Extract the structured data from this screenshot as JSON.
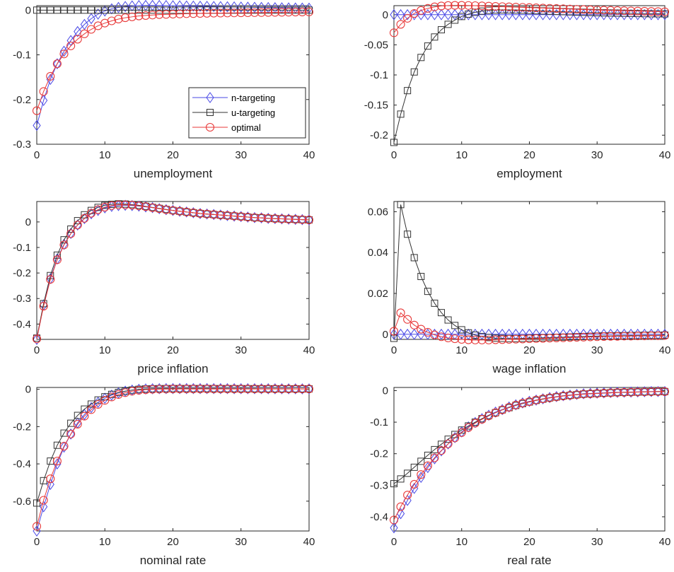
{
  "colors": {
    "n-targeting": "#4a4ae6",
    "u-targeting": "#333333",
    "optimal": "#e83a3a",
    "axes": "#262626"
  },
  "legend": [
    "n-targeting",
    "u-targeting",
    "optimal"
  ],
  "chart_data": [
    {
      "type": "line",
      "xlabel": "unemployment",
      "xlim": [
        0,
        40
      ],
      "ylim": [
        -0.3,
        0.01
      ],
      "xticks": [
        "0",
        "10",
        "20",
        "30",
        "40"
      ],
      "yticks": [
        "0",
        "-0.1",
        "-0.2",
        "-0.3"
      ],
      "legend_placement": "lower-right",
      "series": [
        {
          "name": "n-targeting",
          "marker": "diamond",
          "x0": 0,
          "values": [
            -0.258,
            -0.202,
            -0.155,
            -0.12,
            -0.092,
            -0.068,
            -0.048,
            -0.032,
            -0.019,
            -0.009,
            -0.002,
            0.003,
            0.006,
            0.008,
            0.0095,
            0.0102,
            0.0105,
            0.0105,
            0.0104,
            0.0102,
            0.0099,
            0.0096,
            0.0093,
            0.009,
            0.0087,
            0.0084,
            0.0081,
            0.0078,
            0.0075,
            0.0072,
            0.0069,
            0.0066,
            0.0063,
            0.006,
            0.0057,
            0.0054,
            0.0052,
            0.005,
            0.0048,
            0.0046,
            0.0044
          ]
        },
        {
          "name": "u-targeting",
          "marker": "square",
          "x0": 0,
          "values": [
            0.0,
            0.0,
            0.0,
            0.0,
            0.0,
            0.0,
            0.0,
            0.0,
            0.0,
            0.0,
            0.0,
            0.0,
            0.0,
            0.0,
            0.0,
            0.0,
            0.0,
            0.0,
            0.0,
            0.0,
            0.0,
            0.0,
            0.0,
            0.0,
            0.0,
            0.0,
            0.0,
            0.0,
            0.0,
            0.0,
            0.0,
            0.0,
            0.0,
            0.0,
            0.0,
            0.0,
            0.0,
            0.0,
            0.0,
            0.0,
            0.0
          ]
        },
        {
          "name": "optimal",
          "marker": "circle",
          "x0": 0,
          "values": [
            -0.225,
            -0.182,
            -0.148,
            -0.12,
            -0.098,
            -0.08,
            -0.065,
            -0.053,
            -0.043,
            -0.035,
            -0.029,
            -0.024,
            -0.02,
            -0.017,
            -0.015,
            -0.013,
            -0.012,
            -0.011,
            -0.01,
            -0.0095,
            -0.009,
            -0.0085,
            -0.008,
            -0.0077,
            -0.0074,
            -0.0071,
            -0.0068,
            -0.0066,
            -0.0064,
            -0.0062,
            -0.006,
            -0.0058,
            -0.0056,
            -0.0054,
            -0.0052,
            -0.005,
            -0.0048,
            -0.0046,
            -0.0044,
            -0.0042,
            -0.004
          ]
        }
      ]
    },
    {
      "type": "line",
      "xlabel": "employment",
      "xlim": [
        0,
        40
      ],
      "ylim": [
        -0.215,
        0.015
      ],
      "xticks": [
        "0",
        "10",
        "20",
        "30",
        "40"
      ],
      "yticks": [
        "0",
        "-0.05",
        "-0.1",
        "-0.15",
        "-0.2"
      ],
      "series": [
        {
          "name": "n-targeting",
          "marker": "diamond",
          "x0": 0,
          "values": [
            0.0,
            0.0,
            0.0,
            0.0,
            0.0,
            0.0,
            0.0,
            0.0,
            0.0,
            0.0,
            0.0,
            0.0,
            0.0,
            0.0,
            0.0,
            0.0,
            0.0,
            0.0,
            0.0,
            0.0,
            0.0,
            0.0,
            0.0,
            0.0,
            0.0,
            0.0,
            0.0,
            0.0,
            0.0,
            0.0,
            0.0,
            0.0,
            0.0,
            0.0,
            0.0,
            0.0,
            0.0,
            0.0,
            0.0,
            0.0,
            0.0
          ]
        },
        {
          "name": "u-targeting",
          "marker": "square",
          "x0": 0,
          "values": [
            -0.212,
            -0.165,
            -0.126,
            -0.095,
            -0.071,
            -0.052,
            -0.037,
            -0.025,
            -0.016,
            -0.009,
            -0.003,
            0.001,
            0.004,
            0.006,
            0.0072,
            0.0078,
            0.008,
            0.008,
            0.0078,
            0.0075,
            0.0071,
            0.0067,
            0.0063,
            0.0059,
            0.0055,
            0.0051,
            0.0047,
            0.0043,
            0.004,
            0.0037,
            0.0034,
            0.0031,
            0.0028,
            0.0026,
            0.0024,
            0.0022,
            0.002,
            0.0018,
            0.0016,
            0.0015,
            0.0014
          ]
        },
        {
          "name": "optimal",
          "marker": "circle",
          "x0": 0,
          "values": [
            -0.03,
            -0.016,
            -0.006,
            0.002,
            0.007,
            0.0105,
            0.013,
            0.0145,
            0.0152,
            0.0155,
            0.0155,
            0.0153,
            0.015,
            0.0146,
            0.0142,
            0.0138,
            0.0134,
            0.013,
            0.0126,
            0.0122,
            0.0118,
            0.0114,
            0.011,
            0.0106,
            0.0102,
            0.0098,
            0.0094,
            0.009,
            0.0086,
            0.0082,
            0.0078,
            0.0075,
            0.0072,
            0.0069,
            0.0066,
            0.0063,
            0.006,
            0.0057,
            0.0054,
            0.0051,
            0.0048
          ]
        }
      ]
    },
    {
      "type": "line",
      "xlabel": "price inflation",
      "xlim": [
        0,
        40
      ],
      "ylim": [
        -0.46,
        0.08
      ],
      "xticks": [
        "0",
        "10",
        "20",
        "30",
        "40"
      ],
      "yticks": [
        "0",
        "-0.1",
        "-0.2",
        "-0.3",
        "-0.4"
      ],
      "series": [
        {
          "name": "n-targeting",
          "marker": "diamond",
          "x0": 0,
          "values": [
            -0.46,
            -0.325,
            -0.222,
            -0.145,
            -0.088,
            -0.045,
            -0.012,
            0.013,
            0.032,
            0.045,
            0.055,
            0.061,
            0.064,
            0.065,
            0.064,
            0.062,
            0.059,
            0.056,
            0.052,
            0.048,
            0.045,
            0.042,
            0.039,
            0.036,
            0.033,
            0.031,
            0.029,
            0.027,
            0.025,
            0.023,
            0.021,
            0.019,
            0.017,
            0.016,
            0.014,
            0.013,
            0.012,
            0.011,
            0.01,
            0.009,
            0.008
          ]
        },
        {
          "name": "u-targeting",
          "marker": "square",
          "x0": 0,
          "values": [
            -0.455,
            -0.32,
            -0.21,
            -0.13,
            -0.07,
            -0.028,
            0.005,
            0.028,
            0.045,
            0.057,
            0.065,
            0.069,
            0.071,
            0.07,
            0.068,
            0.065,
            0.061,
            0.057,
            0.053,
            0.049,
            0.045,
            0.042,
            0.039,
            0.036,
            0.033,
            0.031,
            0.029,
            0.027,
            0.025,
            0.023,
            0.021,
            0.019,
            0.017,
            0.016,
            0.014,
            0.013,
            0.012,
            0.011,
            0.01,
            0.009,
            0.008
          ]
        },
        {
          "name": "optimal",
          "marker": "circle",
          "x0": 0,
          "values": [
            -0.458,
            -0.33,
            -0.225,
            -0.148,
            -0.09,
            -0.046,
            -0.012,
            0.014,
            0.034,
            0.048,
            0.058,
            0.064,
            0.067,
            0.067,
            0.066,
            0.063,
            0.06,
            0.056,
            0.052,
            0.048,
            0.045,
            0.042,
            0.039,
            0.036,
            0.033,
            0.031,
            0.029,
            0.027,
            0.025,
            0.023,
            0.021,
            0.019,
            0.017,
            0.016,
            0.014,
            0.013,
            0.012,
            0.011,
            0.01,
            0.009,
            0.008
          ]
        }
      ]
    },
    {
      "type": "line",
      "xlabel": "wage inflation",
      "xlim": [
        0,
        40
      ],
      "ylim": [
        -0.0025,
        0.065
      ],
      "xticks": [
        "0",
        "10",
        "20",
        "30",
        "40"
      ],
      "yticks": [
        "0",
        "0.02",
        "0.04",
        "0.06"
      ],
      "series": [
        {
          "name": "n-targeting",
          "marker": "diamond",
          "x0": 0,
          "values": [
            0.0,
            0.0,
            0.0,
            0.0,
            0.0,
            0.0,
            0.0,
            0.0,
            0.0,
            0.0,
            0.0,
            0.0,
            0.0,
            0.0,
            0.0,
            0.0,
            0.0,
            0.0,
            0.0,
            0.0,
            0.0,
            0.0,
            0.0,
            0.0,
            0.0,
            0.0,
            0.0,
            0.0,
            0.0,
            0.0,
            0.0,
            0.0,
            0.0,
            0.0,
            0.0,
            0.0,
            0.0,
            0.0,
            0.0,
            0.0,
            0.0
          ]
        },
        {
          "name": "u-targeting",
          "marker": "square",
          "x0": 0,
          "values": [
            -0.002,
            0.0635,
            0.049,
            0.0375,
            0.0283,
            0.021,
            0.0152,
            0.0106,
            0.007,
            0.0043,
            0.0022,
            0.0007,
            -0.0004,
            -0.0011,
            -0.0016,
            -0.0019,
            -0.002,
            -0.0021,
            -0.0021,
            -0.002,
            -0.0019,
            -0.0018,
            -0.0017,
            -0.0016,
            -0.0015,
            -0.0014,
            -0.0013,
            -0.0012,
            -0.0011,
            -0.001,
            -0.0009,
            -0.0008,
            -0.0008,
            -0.0007,
            -0.0007,
            -0.0006,
            -0.0006,
            -0.0005,
            -0.0005,
            -0.0005,
            -0.0004
          ]
        },
        {
          "name": "optimal",
          "marker": "circle",
          "x0": 0,
          "values": [
            0.0015,
            0.0105,
            0.0073,
            0.0045,
            0.0025,
            0.001,
            -0.0003,
            -0.0012,
            -0.0018,
            -0.0022,
            -0.0025,
            -0.0027,
            -0.0028,
            -0.0028,
            -0.0028,
            -0.0027,
            -0.0026,
            -0.0025,
            -0.0024,
            -0.0023,
            -0.0022,
            -0.0021,
            -0.002,
            -0.0019,
            -0.0018,
            -0.0017,
            -0.0016,
            -0.0015,
            -0.0014,
            -0.0013,
            -0.0012,
            -0.0011,
            -0.001,
            -0.001,
            -0.0009,
            -0.0009,
            -0.0008,
            -0.0008,
            -0.0007,
            -0.0007,
            -0.0006
          ]
        }
      ]
    },
    {
      "type": "line",
      "xlabel": "nominal rate",
      "xlim": [
        0,
        40
      ],
      "ylim": [
        -0.76,
        0.01
      ],
      "xticks": [
        "0",
        "10",
        "20",
        "30",
        "40"
      ],
      "yticks": [
        "0",
        "-0.2",
        "-0.4",
        "-0.6"
      ],
      "series": [
        {
          "name": "n-targeting",
          "marker": "diamond",
          "x0": 0,
          "values": [
            -0.76,
            -0.63,
            -0.51,
            -0.4,
            -0.31,
            -0.24,
            -0.18,
            -0.135,
            -0.098,
            -0.07,
            -0.048,
            -0.031,
            -0.019,
            -0.01,
            -0.004,
            0.0,
            0.002,
            0.003,
            0.0035,
            0.0038,
            0.004,
            0.004,
            0.004,
            0.004,
            0.004,
            0.004,
            0.0038,
            0.0037,
            0.0036,
            0.0035,
            0.0034,
            0.0033,
            0.0032,
            0.0031,
            0.003,
            0.0029,
            0.0028,
            0.0027,
            0.0026,
            0.0025,
            0.0024
          ]
        },
        {
          "name": "u-targeting",
          "marker": "square",
          "x0": 0,
          "values": [
            -0.61,
            -0.49,
            -0.385,
            -0.3,
            -0.235,
            -0.182,
            -0.14,
            -0.106,
            -0.079,
            -0.057,
            -0.04,
            -0.027,
            -0.017,
            -0.01,
            -0.004,
            0.0,
            0.002,
            0.003,
            0.0035,
            0.0038,
            0.004,
            0.004,
            0.004,
            0.004,
            0.004,
            0.004,
            0.0038,
            0.0037,
            0.0036,
            0.0035,
            0.0034,
            0.0033,
            0.0032,
            0.0031,
            0.003,
            0.0029,
            0.0028,
            0.0027,
            0.0026,
            0.0025,
            0.0024
          ]
        },
        {
          "name": "optimal",
          "marker": "circle",
          "x0": 0,
          "values": [
            -0.735,
            -0.595,
            -0.48,
            -0.385,
            -0.305,
            -0.24,
            -0.187,
            -0.144,
            -0.109,
            -0.081,
            -0.059,
            -0.041,
            -0.028,
            -0.018,
            -0.01,
            -0.005,
            -0.002,
            0.0,
            0.001,
            0.0015,
            0.002,
            0.002,
            0.002,
            0.002,
            0.002,
            0.002,
            0.002,
            0.002,
            0.002,
            0.002,
            0.002,
            0.002,
            0.002,
            0.002,
            0.002,
            0.002,
            0.002,
            0.002,
            0.002,
            0.002,
            0.002
          ]
        }
      ]
    },
    {
      "type": "line",
      "xlabel": "real rate",
      "xlim": [
        0,
        40
      ],
      "ylim": [
        -0.445,
        0.01
      ],
      "xticks": [
        "0",
        "10",
        "20",
        "30",
        "40"
      ],
      "yticks": [
        "0",
        "-0.1",
        "-0.2",
        "-0.3",
        "-0.4"
      ],
      "series": [
        {
          "name": "n-targeting",
          "marker": "diamond",
          "x0": 0,
          "values": [
            -0.435,
            -0.39,
            -0.348,
            -0.31,
            -0.275,
            -0.244,
            -0.216,
            -0.191,
            -0.169,
            -0.149,
            -0.131,
            -0.115,
            -0.101,
            -0.089,
            -0.078,
            -0.068,
            -0.06,
            -0.052,
            -0.045,
            -0.039,
            -0.034,
            -0.03,
            -0.026,
            -0.022,
            -0.019,
            -0.016,
            -0.014,
            -0.012,
            -0.01,
            -0.009,
            -0.008,
            -0.007,
            -0.006,
            -0.0055,
            -0.005,
            -0.0045,
            -0.004,
            -0.0035,
            -0.003,
            -0.003,
            -0.003
          ]
        },
        {
          "name": "u-targeting",
          "marker": "square",
          "x0": 0,
          "values": [
            -0.295,
            -0.28,
            -0.262,
            -0.243,
            -0.224,
            -0.205,
            -0.187,
            -0.17,
            -0.154,
            -0.139,
            -0.125,
            -0.112,
            -0.1,
            -0.089,
            -0.079,
            -0.07,
            -0.061,
            -0.054,
            -0.047,
            -0.041,
            -0.036,
            -0.031,
            -0.027,
            -0.023,
            -0.02,
            -0.017,
            -0.015,
            -0.013,
            -0.011,
            -0.01,
            -0.009,
            -0.008,
            -0.007,
            -0.006,
            -0.0055,
            -0.005,
            -0.0045,
            -0.004,
            -0.0035,
            -0.003,
            -0.003
          ]
        },
        {
          "name": "optimal",
          "marker": "circle",
          "x0": 0,
          "values": [
            -0.41,
            -0.368,
            -0.331,
            -0.297,
            -0.266,
            -0.238,
            -0.213,
            -0.19,
            -0.169,
            -0.15,
            -0.133,
            -0.117,
            -0.103,
            -0.091,
            -0.08,
            -0.07,
            -0.061,
            -0.053,
            -0.046,
            -0.04,
            -0.035,
            -0.03,
            -0.026,
            -0.023,
            -0.02,
            -0.017,
            -0.015,
            -0.013,
            -0.011,
            -0.01,
            -0.009,
            -0.008,
            -0.007,
            -0.006,
            -0.0055,
            -0.005,
            -0.0045,
            -0.004,
            -0.0035,
            -0.003,
            -0.003
          ]
        }
      ]
    }
  ]
}
